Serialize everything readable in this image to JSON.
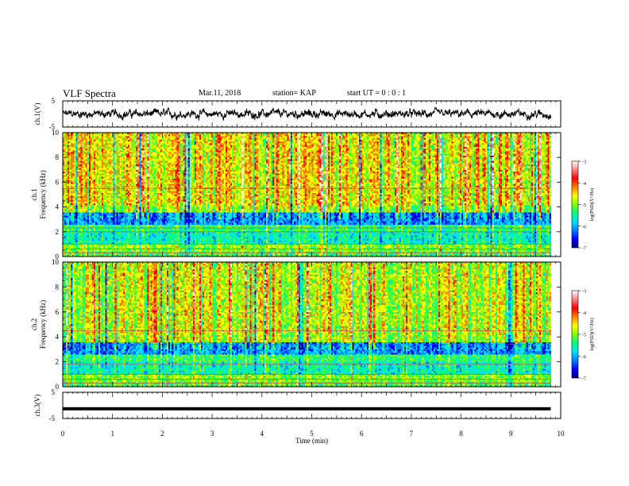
{
  "header": {
    "title": "VLF Spectra",
    "date": "Mar.11, 2018",
    "station": "station= KAP",
    "start_ut": "start  UT =  0 : 0 : 1"
  },
  "colormap": [
    "#000080",
    "#0000ff",
    "#0080ff",
    "#00e0ff",
    "#00ff80",
    "#80ff00",
    "#ffff00",
    "#ff8000",
    "#ff0000",
    "#ff8080",
    "#ffffff"
  ],
  "chart_data": [
    {
      "id": "ch1-waveform",
      "type": "line",
      "ylabel": "ch.1(V)",
      "ylim": [
        -5,
        5
      ],
      "yticks": [
        "5",
        "-5"
      ],
      "xlim": [
        0,
        10
      ],
      "data_extent_min": 9.8,
      "line_color": "#000000",
      "amplitude_range": [
        -2.5,
        2.5
      ]
    },
    {
      "id": "ch1-spectrogram",
      "type": "heatmap",
      "ylabel": "ch.1",
      "ylabel2": "Frequency (kHz)",
      "ylim": [
        0,
        10
      ],
      "yticks": [
        "0",
        "2",
        "4",
        "6",
        "8",
        "10"
      ],
      "xlim": [
        0,
        10
      ],
      "colorbar_label": "log(PSD)(V²/Hz)",
      "colorbar_range": [
        -7,
        -3
      ],
      "colorbar_ticks": [
        "-3",
        "-4",
        "-5",
        "-6",
        "-7"
      ]
    },
    {
      "id": "ch2-spectrogram",
      "type": "heatmap",
      "ylabel": "ch.2",
      "ylabel2": "Frequency (kHz)",
      "ylim": [
        0,
        10
      ],
      "yticks": [
        "0",
        "2",
        "4",
        "6",
        "8",
        "10"
      ],
      "xlim": [
        0,
        10
      ],
      "colorbar_label": "log(PSD)(V²/Hz)",
      "colorbar_range": [
        -7,
        -3
      ],
      "colorbar_ticks": [
        "-3",
        "-4",
        "-5",
        "-6",
        "-7"
      ]
    },
    {
      "id": "ch3-waveform",
      "type": "line",
      "ylabel": "ch.3(V)",
      "ylim": [
        -5,
        5
      ],
      "yticks": [
        "5",
        "-5"
      ],
      "xlim": [
        0,
        10
      ],
      "data_extent_min": 9.8,
      "line_color": "#000000",
      "constant_value": -1.3,
      "xlabel": "Time (min)",
      "xticks": [
        "0",
        "1",
        "2",
        "3",
        "4",
        "5",
        "6",
        "7",
        "8",
        "9",
        "10"
      ]
    }
  ]
}
